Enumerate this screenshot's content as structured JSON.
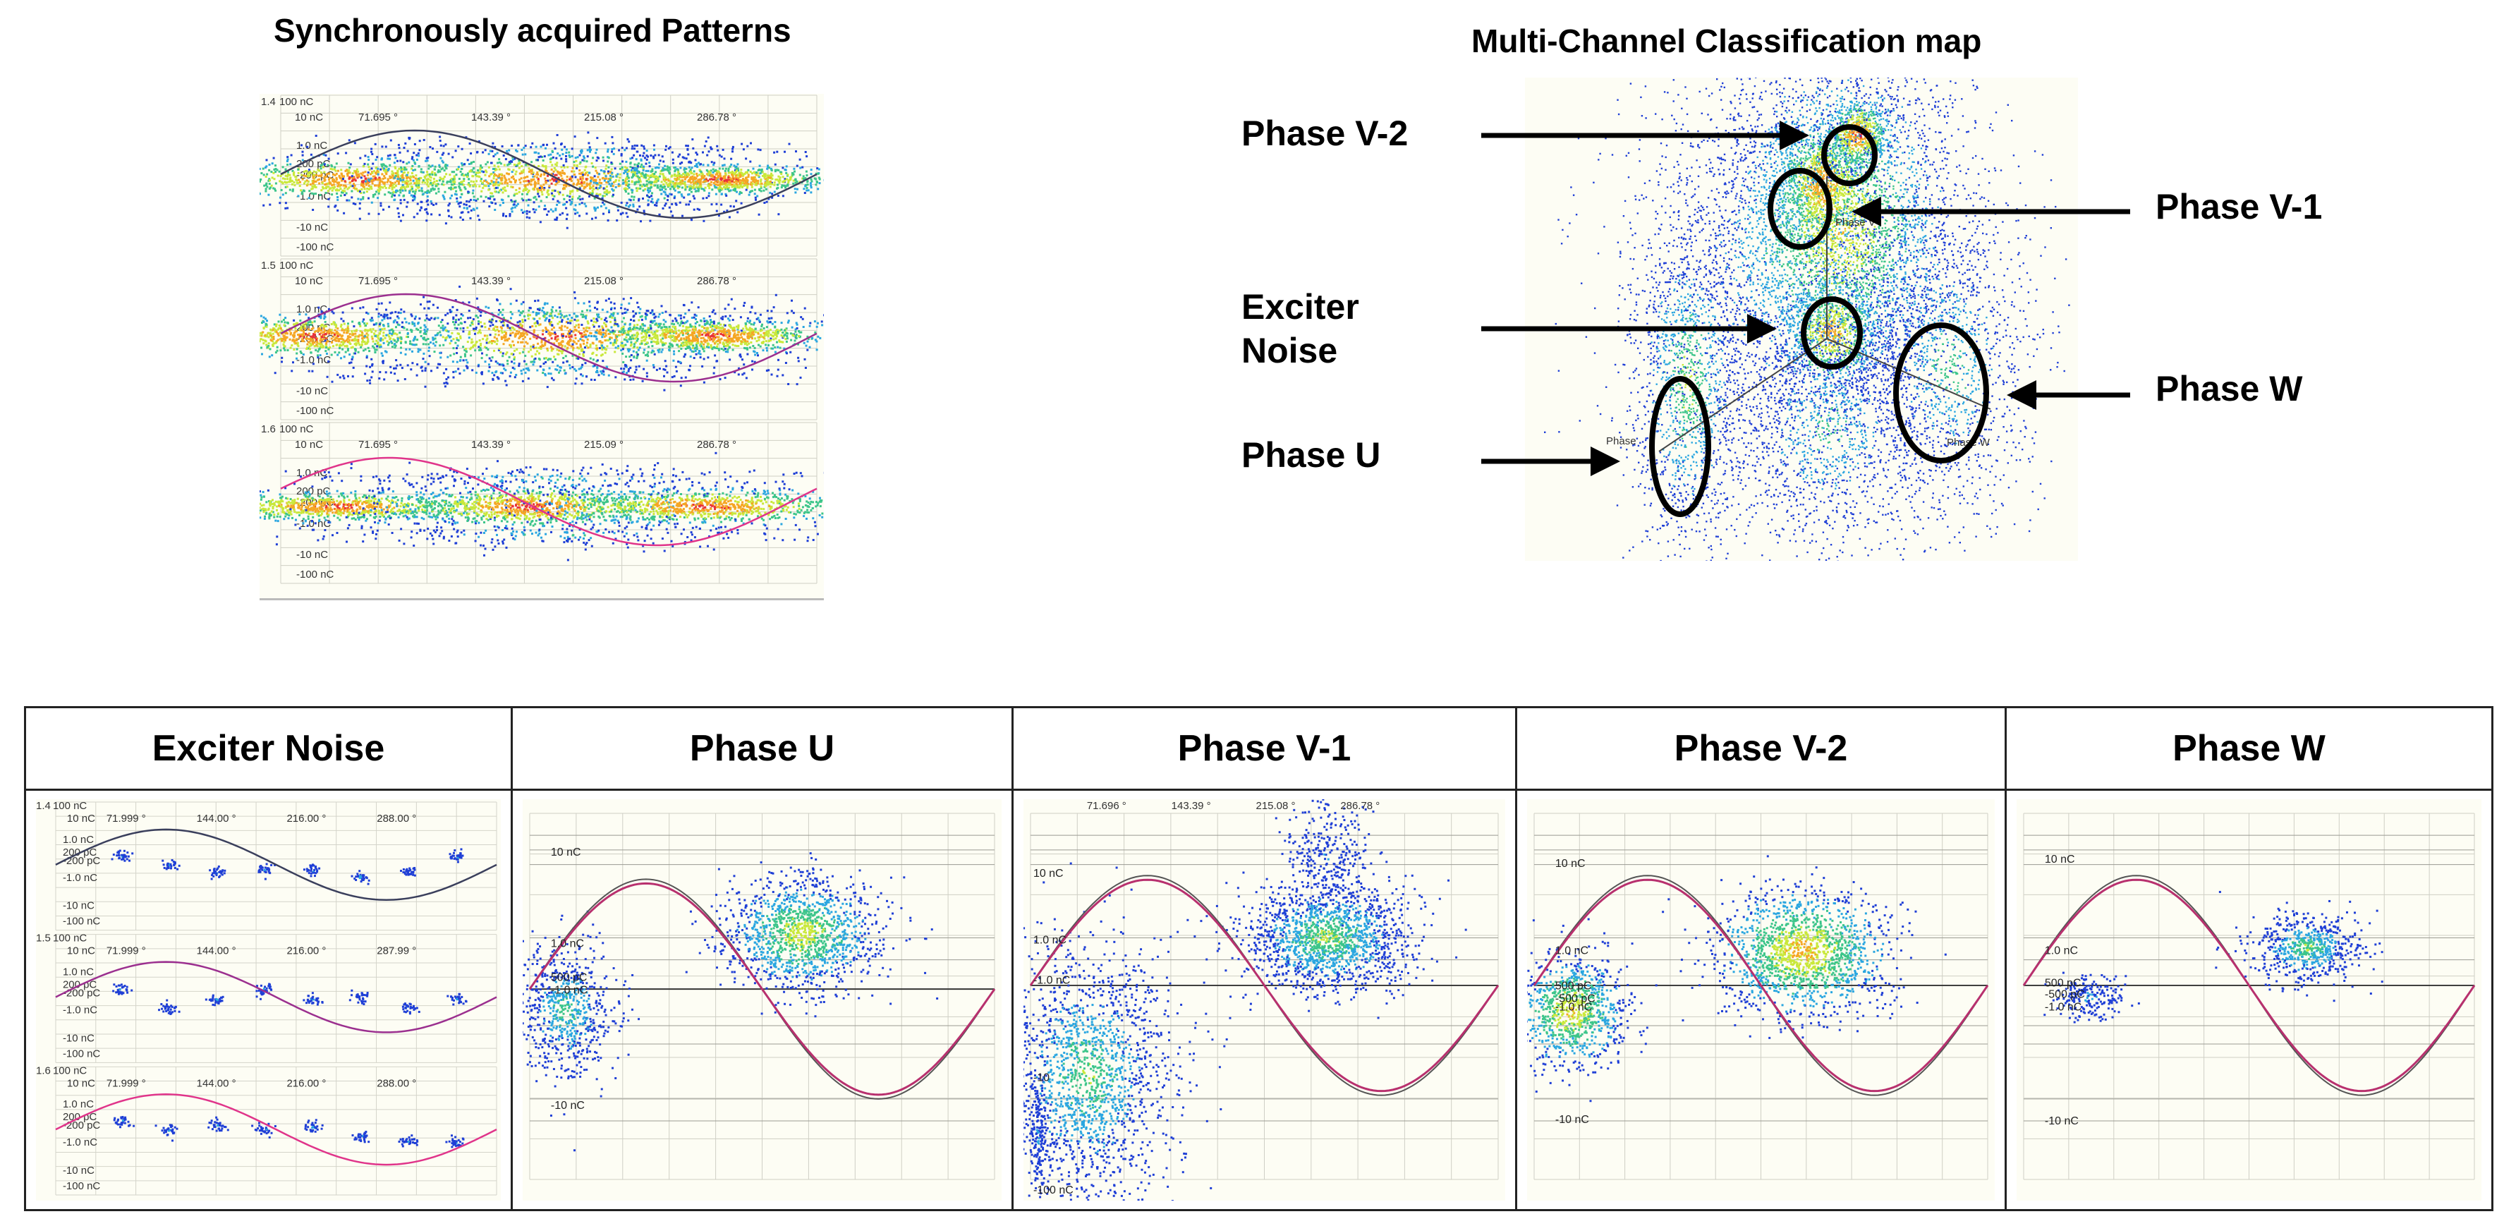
{
  "left_panel": {
    "title": "Synchronously acquired Patterns",
    "channels": [
      {
        "id": "1.4",
        "scale_top": "100 nC",
        "scale_second": "10 nC",
        "phase_ticks": [
          "71.695 °",
          "143.39 °",
          "215.08 °",
          "286.78 °"
        ],
        "y_labels": [
          "1.0 nC",
          "200 pC",
          "-200 pC",
          "-1.0 nC",
          "-10 nC",
          "-100 nC"
        ],
        "sine_color": "#3a3f5c"
      },
      {
        "id": "1.5",
        "scale_top": "100 nC",
        "scale_second": "10 nC",
        "phase_ticks": [
          "71.695 °",
          "143.39 °",
          "215.08 °",
          "286.78 °"
        ],
        "y_labels": [
          "1.0 nC",
          "200 pC",
          "-200 pC",
          "-1.0 nC",
          "-10 nC",
          "-100 nC"
        ],
        "sine_color": "#9b2f8f"
      },
      {
        "id": "1.6",
        "scale_top": "100 nC",
        "scale_second": "10 nC",
        "phase_ticks": [
          "71.695 °",
          "143.39 °",
          "215.09 °",
          "286.78 °"
        ],
        "y_labels": [
          "1.0 nC",
          "200 pC",
          "-200 pC",
          "-1.0 nC",
          "-10 nC",
          "-100 nC"
        ],
        "sine_color": "#e0348a"
      }
    ]
  },
  "classification_map": {
    "title": "Multi-Channel Classification map",
    "axis_labels": {
      "phase_v": "Phase V",
      "phase_u": "Phase",
      "phase_w": "Phase W"
    },
    "callouts": {
      "phase_v2": "Phase V-2",
      "phase_v1": "Phase V-1",
      "exciter_noise_line1": "Exciter",
      "exciter_noise_line2": "Noise",
      "phase_w": "Phase W",
      "phase_u": "Phase U"
    }
  },
  "table": {
    "headers": [
      "Exciter Noise",
      "Phase U",
      "Phase V-1",
      "Phase V-2",
      "Phase W"
    ],
    "exciter_noise": {
      "channels": [
        {
          "id": "1.4",
          "scale_top": "100 nC",
          "scale_second": "10 nC",
          "phase_ticks": [
            "71.999 °",
            "144.00 °",
            "216.00 °",
            "288.00 °"
          ],
          "y_labels": [
            "1.0 nC",
            "200 pC",
            "-200 pC",
            "-1.0 nC",
            "-10 nC",
            "-100 nC"
          ]
        },
        {
          "id": "1.5",
          "scale_top": "100 nC",
          "scale_second": "10 nC",
          "phase_ticks": [
            "71.999 °",
            "144.00 °",
            "216.00 °",
            "287.99 °"
          ],
          "y_labels": [
            "1.0 nC",
            "200 pC",
            "-200 pC",
            "-1.0 nC",
            "-10 nC",
            "-100 nC"
          ]
        },
        {
          "id": "1.6",
          "scale_top": "100 nC",
          "scale_second": "10 nC",
          "phase_ticks": [
            "71.999 °",
            "144.00 °",
            "216.00 °",
            "288.00 °"
          ],
          "y_labels": [
            "1.0 nC",
            "200 pC",
            "-200 pC",
            "-1.0 nC",
            "-10 nC",
            "-100 nC"
          ]
        }
      ]
    },
    "phase_u": {
      "y_labels": [
        "10 nC",
        "1.0 nC",
        "500 pC",
        "-1.0 nC",
        "-10 nC"
      ]
    },
    "phase_v1": {
      "phase_ticks": [
        "71.696 °",
        "143.39 °",
        "215.08 °",
        "286.78 °"
      ],
      "y_labels": [
        "10 nC",
        "1.0 nC",
        "-1.0 nC",
        "-10",
        "-100 nC"
      ]
    },
    "phase_v2": {
      "y_labels": [
        "10 nC",
        "1.0 nC",
        "500 pC",
        "-500 pC",
        "-1.0 nC",
        "-10 nC"
      ]
    },
    "phase_w": {
      "y_labels": [
        "10 nC",
        "1.0 nC",
        "500 pC",
        "-500 pC",
        "-1.0 nC",
        "-10 nC"
      ]
    }
  },
  "colors": {
    "sine_magenta": "#b8306e",
    "sine_gray": "#555555",
    "plot_background": "#fdfdf4"
  }
}
